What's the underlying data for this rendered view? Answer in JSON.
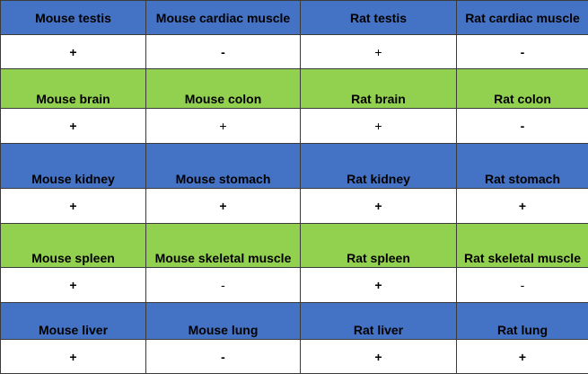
{
  "colors": {
    "blue_band": "#4472c4",
    "green_band": "#92d050",
    "value_band": "#ffffff"
  },
  "rows": [
    {
      "band": "blue",
      "labels": [
        "Mouse testis",
        "Mouse cardiac muscle",
        "Rat testis",
        "Rat cardiac muscle"
      ],
      "values": [
        "+",
        "-",
        "+",
        "-"
      ]
    },
    {
      "band": "green",
      "labels": [
        "Mouse brain",
        "Mouse colon",
        "Rat brain",
        "Rat colon"
      ],
      "values": [
        "+",
        "+",
        "+",
        "-"
      ]
    },
    {
      "band": "blue",
      "labels": [
        "Mouse kidney",
        "Mouse stomach",
        "Rat kidney",
        "Rat stomach"
      ],
      "values": [
        "+",
        "+",
        "+",
        "+"
      ]
    },
    {
      "band": "green",
      "labels": [
        "Mouse spleen",
        "Mouse skeletal muscle",
        "Rat spleen",
        "Rat skeletal muscle"
      ],
      "values": [
        "+",
        "-",
        "+",
        "-"
      ]
    },
    {
      "band": "blue",
      "labels": [
        "Mouse liver",
        "Mouse lung",
        "Rat liver",
        "Rat lung"
      ],
      "values": [
        "+",
        "-",
        "+",
        "+"
      ]
    }
  ]
}
